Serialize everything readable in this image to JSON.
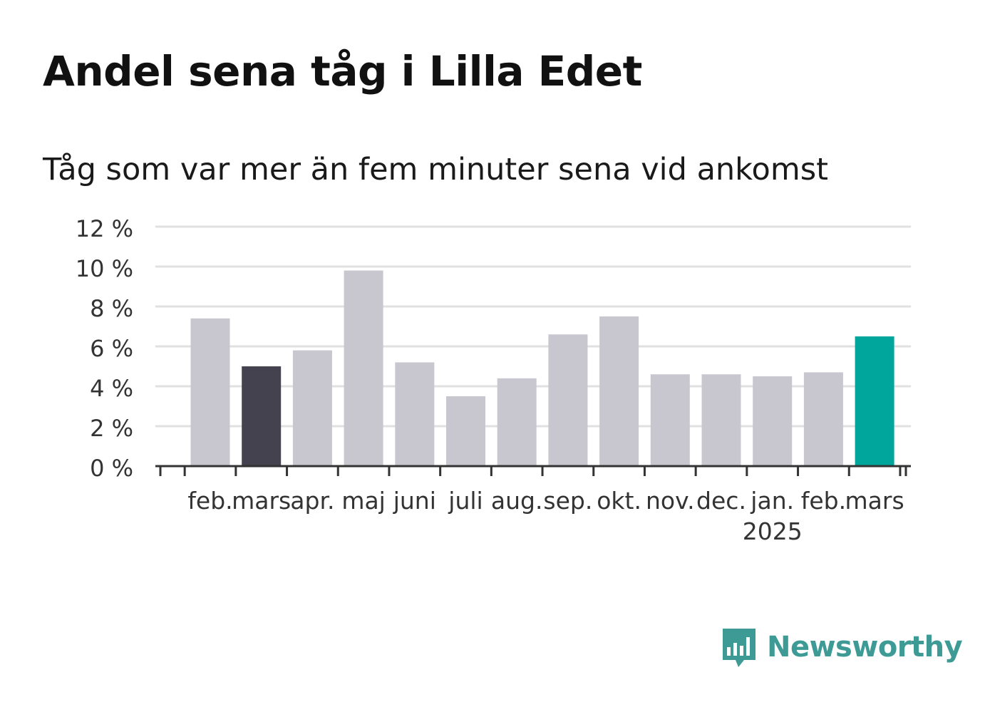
{
  "title": "Andel sena tåg i Lilla Edet",
  "subtitle": "Tåg som var mer än fem minuter sena vid ankomst",
  "brand": {
    "name": "Newsworthy",
    "icon": "bar-chart-speech-icon",
    "color": "#3d9a94"
  },
  "colors": {
    "default_bar": "#c8c7d0",
    "comparison_bar": "#44424e",
    "latest_bar": "#00a59b",
    "grid": "#e0e0e0",
    "axis": "#333333"
  },
  "chart_data": {
    "type": "bar",
    "categories": [
      "feb.",
      "mars",
      "apr.",
      "maj",
      "juni",
      "juli",
      "aug.",
      "sep.",
      "okt.",
      "nov.",
      "dec.",
      "jan.",
      "feb.",
      "mars"
    ],
    "year_labels": [
      {
        "index": 11,
        "label": "2025"
      }
    ],
    "values": [
      7.4,
      5.0,
      5.8,
      9.8,
      5.2,
      3.5,
      4.4,
      6.6,
      7.5,
      4.6,
      4.6,
      4.5,
      4.7,
      6.5
    ],
    "highlight": [
      "default",
      "comparison",
      "default",
      "default",
      "default",
      "default",
      "default",
      "default",
      "default",
      "default",
      "default",
      "default",
      "default",
      "latest"
    ],
    "y_ticks": [
      0,
      2,
      4,
      6,
      8,
      10,
      12
    ],
    "y_tick_suffix": " %",
    "ylim": [
      0,
      12
    ],
    "grid": true,
    "xlabel": "",
    "ylabel": ""
  }
}
